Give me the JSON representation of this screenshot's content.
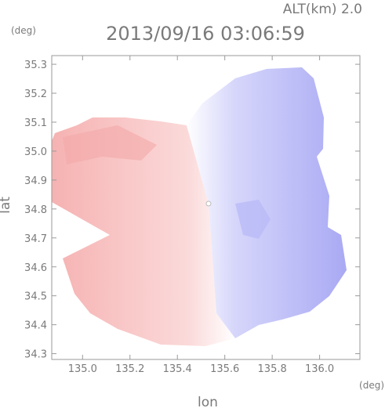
{
  "chart_data": {
    "type": "heatmap",
    "title": "2013/09/16 03:06:59",
    "altitude_label": "ALT(km) 2.0",
    "xlabel": "lon",
    "ylabel": "lat",
    "xunit": "(deg)",
    "yunit": "(deg)",
    "xlim": [
      134.87,
      136.17
    ],
    "ylim": [
      34.28,
      35.33
    ],
    "xticks": [
      135.0,
      135.2,
      135.4,
      135.6,
      135.8,
      136.0
    ],
    "xtick_labels": [
      "135.0",
      "135.2",
      "135.4",
      "135.6",
      "135.8",
      "136.0"
    ],
    "yticks": [
      34.3,
      34.4,
      34.5,
      34.6,
      34.7,
      34.8,
      34.9,
      35.0,
      35.1,
      35.2,
      35.3
    ],
    "ytick_labels": [
      "34.3",
      "34.4",
      "34.5",
      "34.6",
      "34.7",
      "34.8",
      "34.9",
      "35.0",
      "35.1",
      "35.2",
      "35.3"
    ],
    "grid": false,
    "radar_center": {
      "lon": 135.525,
      "lat": 34.8
    },
    "colors": {
      "positive": "#f08a8a",
      "negative": "#8a8af0",
      "zero": "#ffffff",
      "axes": "#9a9a9a"
    }
  }
}
